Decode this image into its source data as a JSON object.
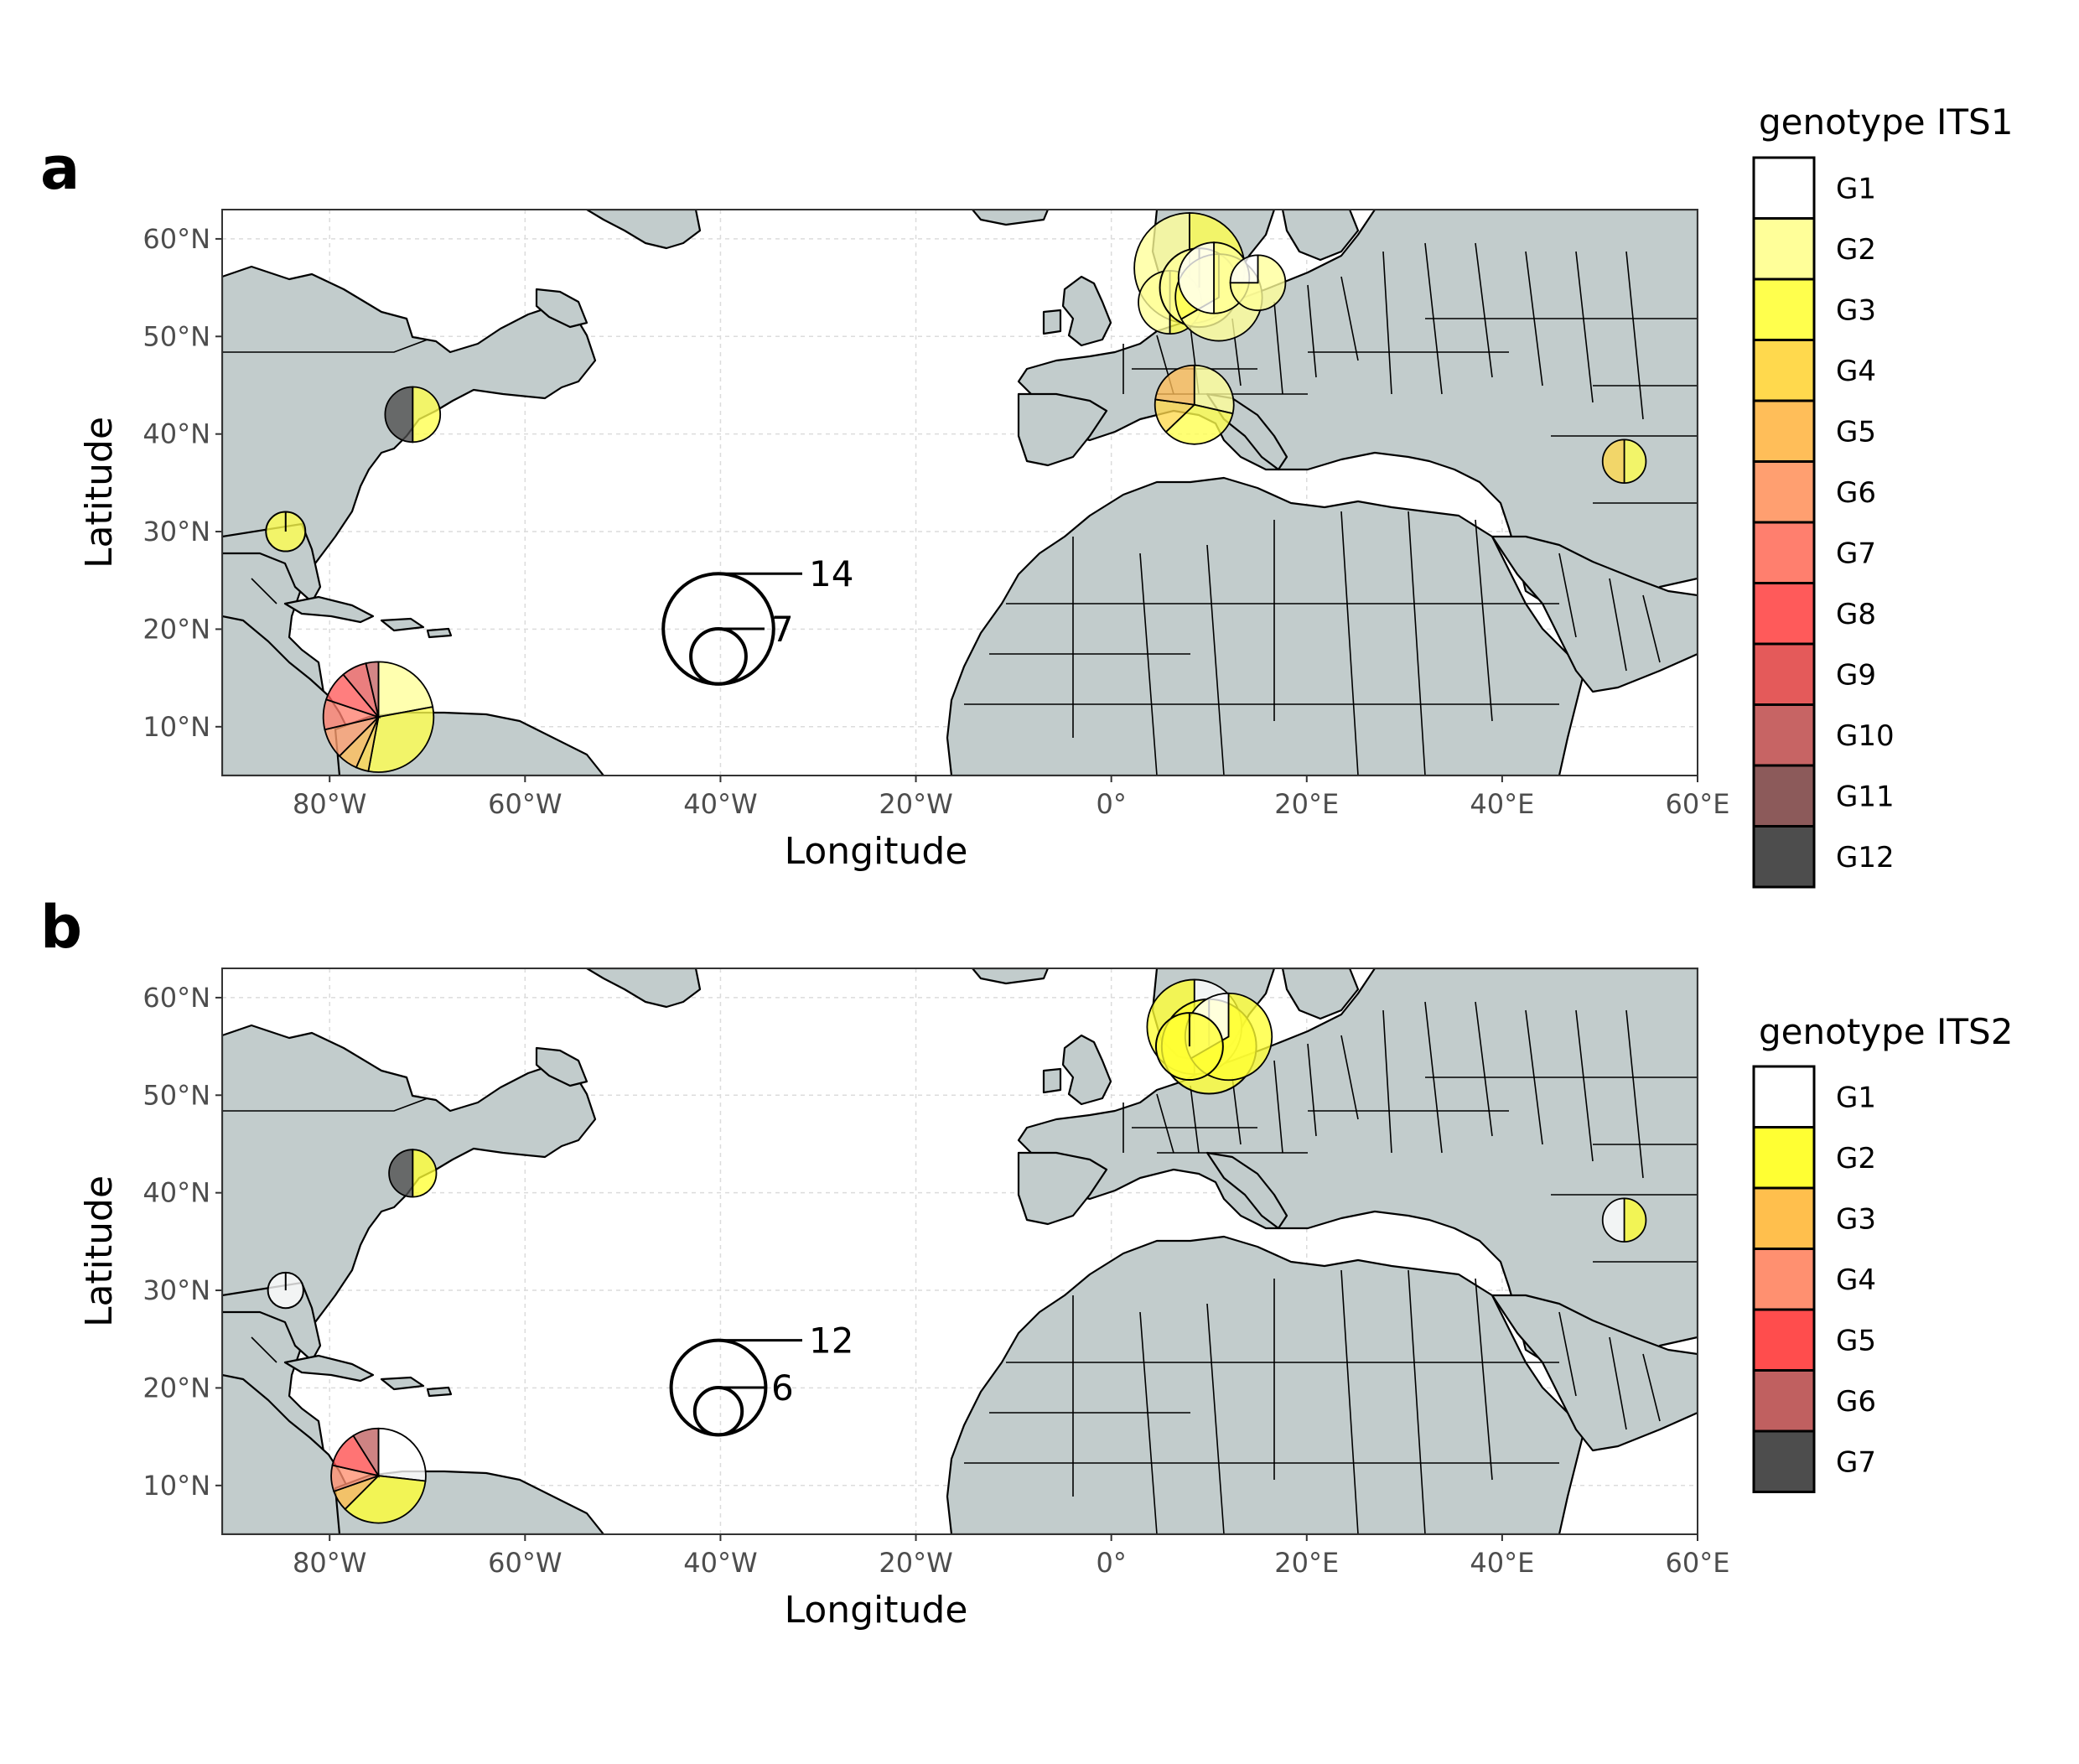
{
  "figure": {
    "panels": [
      {
        "letter": "a",
        "xlabel": "Longitude",
        "ylabel": "Latitude",
        "x_ticks": [
          "80°W",
          "60°W",
          "40°W",
          "20°W",
          "0°",
          "20°E",
          "40°E",
          "60°E"
        ],
        "y_ticks": [
          "60°N",
          "50°N",
          "40°N",
          "30°N",
          "20°N",
          "10°N"
        ],
        "legend_title": "genotype ITS1",
        "legend_items": [
          {
            "label": "G1",
            "color": "#ffffff"
          },
          {
            "label": "G2",
            "color": "#ffff99"
          },
          {
            "label": "G3",
            "color": "#ffff4d"
          },
          {
            "label": "G4",
            "color": "#ffd94d"
          },
          {
            "label": "G5",
            "color": "#ffbe59"
          },
          {
            "label": "G6",
            "color": "#ff9f70"
          },
          {
            "label": "G7",
            "color": "#ff7f6e"
          },
          {
            "label": "G8",
            "color": "#ff5a5a"
          },
          {
            "label": "G9",
            "color": "#e45a5a"
          },
          {
            "label": "G10",
            "color": "#c76464"
          },
          {
            "label": "G11",
            "color": "#8c5a5a"
          },
          {
            "label": "G12",
            "color": "#4d4d4d"
          }
        ],
        "size_legend": {
          "labels": [
            "14",
            "7"
          ],
          "values": [
            14,
            7
          ]
        }
      },
      {
        "letter": "b",
        "xlabel": "Longitude",
        "ylabel": "Latitude",
        "x_ticks": [
          "80°W",
          "60°W",
          "40°W",
          "20°W",
          "0°",
          "20°E",
          "40°E",
          "60°E"
        ],
        "y_ticks": [
          "60°N",
          "50°N",
          "40°N",
          "30°N",
          "20°N",
          "10°N"
        ],
        "legend_title": "genotype ITS2",
        "legend_items": [
          {
            "label": "G1",
            "color": "#ffffff"
          },
          {
            "label": "G2",
            "color": "#ffff33"
          },
          {
            "label": "G3",
            "color": "#ffbf4d"
          },
          {
            "label": "G4",
            "color": "#ff9070"
          },
          {
            "label": "G5",
            "color": "#ff4d4d"
          },
          {
            "label": "G6",
            "color": "#c06060"
          },
          {
            "label": "G7",
            "color": "#4d4d4d"
          }
        ],
        "size_legend": {
          "labels": [
            "12",
            "6"
          ],
          "values": [
            12,
            6
          ]
        }
      }
    ]
  },
  "chart_data": {
    "type": "map-pie",
    "x_range": [
      -91,
      60
    ],
    "y_range": [
      5,
      63
    ],
    "colors": {
      "land": "#c2cccc",
      "ocean": "#ffffff",
      "gridline": "#dcdcdc"
    },
    "panels": [
      {
        "name": "a",
        "pies": [
          {
            "lon": -75,
            "lat": 11,
            "r": 14,
            "slices": [
              {
                "g": "G2",
                "v": 3
              },
              {
                "g": "G3",
                "v": 4.2
              },
              {
                "g": "G4",
                "v": 0.5
              },
              {
                "g": "G5",
                "v": 0.8
              },
              {
                "g": "G6",
                "v": 1.2
              },
              {
                "g": "G7",
                "v": 1.2
              },
              {
                "g": "G8",
                "v": 1.2
              },
              {
                "g": "G9",
                "v": 1
              },
              {
                "g": "G10",
                "v": 0.5
              }
            ]
          },
          {
            "lon": -71.5,
            "lat": 42,
            "r": 7,
            "slices": [
              {
                "g": "G3",
                "v": 1
              },
              {
                "g": "G12",
                "v": 1
              }
            ]
          },
          {
            "lon": -84.5,
            "lat": 30,
            "r": 5,
            "slices": [
              {
                "g": "G3",
                "v": 1
              }
            ]
          },
          {
            "lon": 8,
            "lat": 57,
            "r": 14,
            "slices": [
              {
                "g": "G3",
                "v": 1
              },
              {
                "g": "G2",
                "v": 1
              }
            ]
          },
          {
            "lon": 6,
            "lat": 53.5,
            "r": 8,
            "slices": [
              {
                "g": "G3",
                "v": 1
              },
              {
                "g": "G2",
                "v": 1
              }
            ]
          },
          {
            "lon": 9,
            "lat": 55,
            "r": 10,
            "slices": [
              {
                "g": "G2",
                "v": 1
              }
            ]
          },
          {
            "lon": 11,
            "lat": 54,
            "r": 11,
            "slices": [
              {
                "g": "G2",
                "v": 2
              },
              {
                "g": "G3",
                "v": 1
              }
            ]
          },
          {
            "lon": 10.5,
            "lat": 56,
            "r": 9,
            "slices": [
              {
                "g": "G2",
                "v": 1
              },
              {
                "g": "G1",
                "v": 1
              }
            ]
          },
          {
            "lon": 15,
            "lat": 55.5,
            "r": 7,
            "slices": [
              {
                "g": "G2",
                "v": 3
              },
              {
                "g": "G1",
                "v": 1
              }
            ]
          },
          {
            "lon": 8.5,
            "lat": 43,
            "r": 10,
            "slices": [
              {
                "g": "G2",
                "v": 1
              },
              {
                "g": "G3",
                "v": 1.2
              },
              {
                "g": "G4",
                "v": 0.5
              },
              {
                "g": "G5",
                "v": 0.8
              }
            ]
          },
          {
            "lon": 52.5,
            "lat": 37.2,
            "r": 5.5,
            "slices": [
              {
                "g": "G3",
                "v": 1
              },
              {
                "g": "G4",
                "v": 1
              }
            ]
          }
        ]
      },
      {
        "name": "b",
        "pies": [
          {
            "lon": -75,
            "lat": 11,
            "r": 12,
            "slices": [
              {
                "g": "G1",
                "v": 3
              },
              {
                "g": "G2",
                "v": 4
              },
              {
                "g": "G3",
                "v": 0.8
              },
              {
                "g": "G4",
                "v": 1
              },
              {
                "g": "G5",
                "v": 1.4
              },
              {
                "g": "G6",
                "v": 1
              }
            ]
          },
          {
            "lon": -71.5,
            "lat": 42,
            "r": 6,
            "slices": [
              {
                "g": "G2",
                "v": 1
              },
              {
                "g": "G7",
                "v": 1
              }
            ]
          },
          {
            "lon": -84.5,
            "lat": 30,
            "r": 4.5,
            "slices": [
              {
                "g": "G1",
                "v": 1
              }
            ]
          },
          {
            "lon": 8.5,
            "lat": 57,
            "r": 12,
            "slices": [
              {
                "g": "G1",
                "v": 1
              },
              {
                "g": "G2",
                "v": 1
              }
            ]
          },
          {
            "lon": 10,
            "lat": 55,
            "r": 12,
            "slices": [
              {
                "g": "G2",
                "v": 1
              }
            ]
          },
          {
            "lon": 12,
            "lat": 56,
            "r": 11,
            "slices": [
              {
                "g": "G2",
                "v": 2
              },
              {
                "g": "G1",
                "v": 1
              }
            ]
          },
          {
            "lon": 8,
            "lat": 55,
            "r": 8.5,
            "slices": [
              {
                "g": "G2",
                "v": 1
              }
            ]
          },
          {
            "lon": 52.5,
            "lat": 37.2,
            "r": 5.5,
            "slices": [
              {
                "g": "G2",
                "v": 1
              },
              {
                "g": "G1",
                "v": 1
              }
            ]
          }
        ]
      }
    ]
  }
}
